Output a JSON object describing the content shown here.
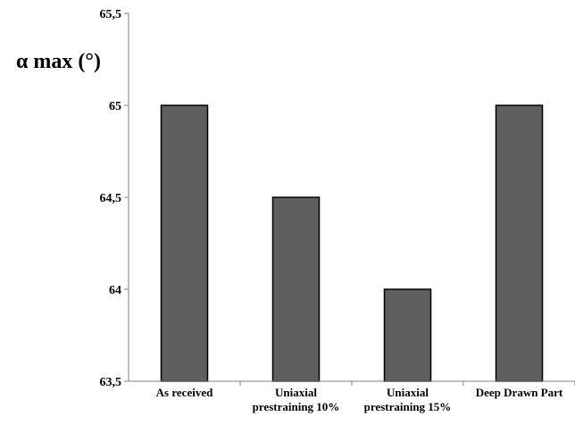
{
  "chart_data": {
    "type": "bar",
    "ylabel": "α max (°)",
    "categories": [
      [
        "As received"
      ],
      [
        "Uniaxial",
        "prestraining 10%"
      ],
      [
        "Uniaxial",
        "prestraining 15%"
      ],
      [
        "Deep Drawn Part"
      ]
    ],
    "values": [
      65,
      64.5,
      64,
      65
    ],
    "ylim": [
      63.5,
      65.5
    ],
    "yticks": [
      "63,5",
      "64",
      "64,5",
      "65",
      "65,5"
    ],
    "ytick_values": [
      63.5,
      64,
      64.5,
      65,
      65.5
    ],
    "grid": false,
    "colors": {
      "bar_fill": "#5f5f5f",
      "bar_stroke": "#000000",
      "axis": "#808080"
    }
  }
}
